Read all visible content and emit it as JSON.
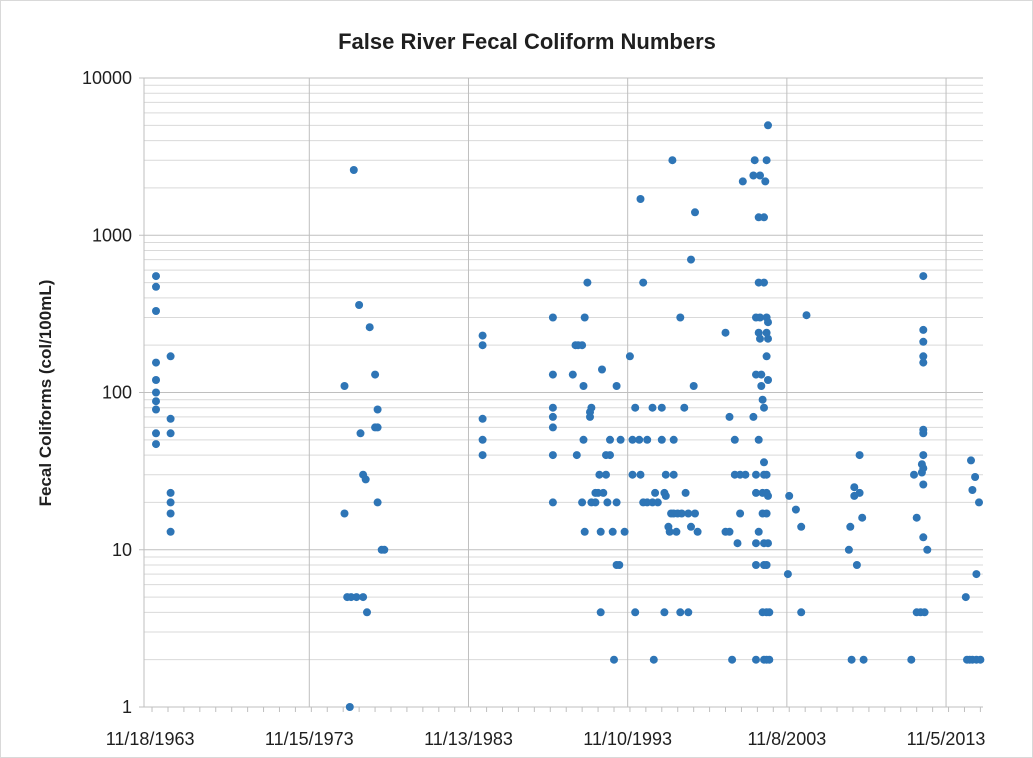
{
  "chart_data": {
    "type": "scatter",
    "title": "False River Fecal Coliform Numbers",
    "xlabel": "",
    "ylabel": "Fecal Coliforms (col/100mL)",
    "y_scale": "log",
    "ylim": [
      1,
      10000
    ],
    "xlim": [
      "1963-07-01",
      "2016-03-01"
    ],
    "y_ticks": [
      "1",
      "10",
      "100",
      "1000",
      "10000"
    ],
    "x_ticks": [
      {
        "date": "1963-11-18",
        "label": "11/18/1963"
      },
      {
        "date": "1973-11-15",
        "label": "11/15/1973"
      },
      {
        "date": "1983-11-13",
        "label": "11/13/1983"
      },
      {
        "date": "1993-11-10",
        "label": "11/10/1993"
      },
      {
        "date": "2003-11-08",
        "label": "11/8/2003"
      },
      {
        "date": "2013-11-05",
        "label": "11/5/2013"
      }
    ],
    "grid": "on",
    "legend": "none",
    "marker_color": "#2e75b6",
    "series": [
      {
        "points": [
          [
            "1964-04-01",
            550
          ],
          [
            "1964-04-01",
            470
          ],
          [
            "1964-04-01",
            330
          ],
          [
            "1964-04-01",
            155
          ],
          [
            "1964-04-01",
            120
          ],
          [
            "1964-04-01",
            100
          ],
          [
            "1964-04-01",
            88
          ],
          [
            "1964-04-01",
            78
          ],
          [
            "1964-04-01",
            55
          ],
          [
            "1964-04-01",
            47
          ],
          [
            "1965-03-01",
            170
          ],
          [
            "1965-03-01",
            68
          ],
          [
            "1965-03-01",
            55
          ],
          [
            "1965-03-01",
            23
          ],
          [
            "1965-03-01",
            20
          ],
          [
            "1965-03-01",
            17
          ],
          [
            "1965-03-01",
            13
          ],
          [
            "1976-02-01",
            110
          ],
          [
            "1976-02-01",
            17
          ],
          [
            "1976-04-01",
            5
          ],
          [
            "1976-06-01",
            1
          ],
          [
            "1976-07-01",
            5
          ],
          [
            "1976-09-01",
            2600
          ],
          [
            "1976-11-01",
            5
          ],
          [
            "1977-01-01",
            360
          ],
          [
            "1977-02-01",
            55
          ],
          [
            "1977-04-01",
            30
          ],
          [
            "1977-04-01",
            5
          ],
          [
            "1977-06-01",
            28
          ],
          [
            "1977-07-01",
            4
          ],
          [
            "1977-09-01",
            260
          ],
          [
            "1978-01-01",
            130
          ],
          [
            "1978-01-01",
            60
          ],
          [
            "1978-03-01",
            78
          ],
          [
            "1978-03-01",
            60
          ],
          [
            "1978-03-01",
            20
          ],
          [
            "1978-06-01",
            10
          ],
          [
            "1978-08-01",
            10
          ],
          [
            "1984-10-01",
            230
          ],
          [
            "1984-10-01",
            200
          ],
          [
            "1984-10-01",
            68
          ],
          [
            "1984-10-01",
            50
          ],
          [
            "1984-10-01",
            40
          ],
          [
            "1989-03-01",
            300
          ],
          [
            "1989-03-01",
            130
          ],
          [
            "1989-03-01",
            80
          ],
          [
            "1989-03-01",
            70
          ],
          [
            "1989-03-01",
            60
          ],
          [
            "1989-03-01",
            40
          ],
          [
            "1989-03-01",
            20
          ],
          [
            "1990-06-01",
            130
          ],
          [
            "1990-08-01",
            200
          ],
          [
            "1990-09-01",
            40
          ],
          [
            "1990-10-01",
            200
          ],
          [
            "1991-01-01",
            200
          ],
          [
            "1991-01-01",
            20
          ],
          [
            "1991-02-01",
            110
          ],
          [
            "1991-02-01",
            50
          ],
          [
            "1991-03-01",
            300
          ],
          [
            "1991-03-01",
            13
          ],
          [
            "1991-05-01",
            500
          ],
          [
            "1991-07-01",
            75
          ],
          [
            "1991-07-01",
            70
          ],
          [
            "1991-08-01",
            80
          ],
          [
            "1991-08-01",
            20
          ],
          [
            "1991-11-01",
            23
          ],
          [
            "1991-11-01",
            20
          ],
          [
            "1992-01-01",
            23
          ],
          [
            "1992-02-01",
            30
          ],
          [
            "1992-03-01",
            4
          ],
          [
            "1992-03-01",
            13
          ],
          [
            "1992-04-01",
            140
          ],
          [
            "1992-05-01",
            23
          ],
          [
            "1992-07-01",
            40
          ],
          [
            "1992-07-01",
            30
          ],
          [
            "1992-08-01",
            20
          ],
          [
            "1992-10-01",
            50
          ],
          [
            "1992-10-01",
            40
          ],
          [
            "1992-12-01",
            13
          ],
          [
            "1993-01-01",
            2
          ],
          [
            "1993-03-01",
            110
          ],
          [
            "1993-03-01",
            20
          ],
          [
            "1993-03-01",
            8
          ],
          [
            "1993-05-01",
            8
          ],
          [
            "1993-06-01",
            50
          ],
          [
            "1993-09-01",
            13
          ],
          [
            "1994-01-01",
            170
          ],
          [
            "1994-03-01",
            30
          ],
          [
            "1994-03-01",
            50
          ],
          [
            "1994-05-01",
            4
          ],
          [
            "1994-05-01",
            80
          ],
          [
            "1994-08-01",
            50
          ],
          [
            "1994-09-01",
            1700
          ],
          [
            "1994-09-01",
            30
          ],
          [
            "1994-11-01",
            500
          ],
          [
            "1994-11-01",
            20
          ],
          [
            "1995-02-01",
            50
          ],
          [
            "1995-02-01",
            20
          ],
          [
            "1995-06-01",
            80
          ],
          [
            "1995-06-01",
            20
          ],
          [
            "1995-07-01",
            2
          ],
          [
            "1995-08-01",
            23
          ],
          [
            "1995-10-01",
            20
          ],
          [
            "1996-01-01",
            80
          ],
          [
            "1996-01-01",
            50
          ],
          [
            "1996-03-01",
            23
          ],
          [
            "1996-03-01",
            4
          ],
          [
            "1996-04-01",
            30
          ],
          [
            "1996-04-01",
            22
          ],
          [
            "1996-06-01",
            14
          ],
          [
            "1996-07-01",
            13
          ],
          [
            "1996-08-01",
            17
          ],
          [
            "1996-09-01",
            3000
          ],
          [
            "1996-10-01",
            30
          ],
          [
            "1996-10-01",
            50
          ],
          [
            "1996-10-01",
            17
          ],
          [
            "1996-12-01",
            13
          ],
          [
            "1997-01-01",
            17
          ],
          [
            "1997-03-01",
            300
          ],
          [
            "1997-03-01",
            4
          ],
          [
            "1997-04-01",
            17
          ],
          [
            "1997-06-01",
            80
          ],
          [
            "1997-07-01",
            23
          ],
          [
            "1997-09-01",
            17
          ],
          [
            "1997-09-01",
            4
          ],
          [
            "1997-11-01",
            700
          ],
          [
            "1997-11-01",
            14
          ],
          [
            "1998-01-01",
            110
          ],
          [
            "1998-02-01",
            1400
          ],
          [
            "1998-02-01",
            17
          ],
          [
            "1998-04-01",
            13
          ],
          [
            "2000-01-01",
            240
          ],
          [
            "2000-01-01",
            13
          ],
          [
            "2000-04-01",
            70
          ],
          [
            "2000-04-01",
            13
          ],
          [
            "2000-06-01",
            2
          ],
          [
            "2000-08-01",
            50
          ],
          [
            "2000-08-01",
            30
          ],
          [
            "2000-10-01",
            11
          ],
          [
            "2000-12-01",
            30
          ],
          [
            "2000-12-01",
            17
          ],
          [
            "2001-02-01",
            2200
          ],
          [
            "2001-04-01",
            30
          ],
          [
            "2001-10-01",
            70
          ],
          [
            "2001-10-01",
            2400
          ],
          [
            "2001-11-01",
            3000
          ],
          [
            "2001-12-01",
            300
          ],
          [
            "2001-12-01",
            130
          ],
          [
            "2001-12-01",
            30
          ],
          [
            "2001-12-01",
            23
          ],
          [
            "2001-12-01",
            11
          ],
          [
            "2001-12-01",
            8
          ],
          [
            "2001-12-01",
            2
          ],
          [
            "2002-02-01",
            500
          ],
          [
            "2002-02-01",
            240
          ],
          [
            "2002-02-01",
            13
          ],
          [
            "2002-02-01",
            50
          ],
          [
            "2002-02-01",
            1300
          ],
          [
            "2002-03-01",
            2400
          ],
          [
            "2002-03-01",
            300
          ],
          [
            "2002-03-01",
            220
          ],
          [
            "2002-04-01",
            130
          ],
          [
            "2002-04-01",
            110
          ],
          [
            "2002-05-01",
            90
          ],
          [
            "2002-05-01",
            23
          ],
          [
            "2002-05-01",
            17
          ],
          [
            "2002-05-01",
            4
          ],
          [
            "2002-06-01",
            80
          ],
          [
            "2002-06-01",
            36
          ],
          [
            "2002-06-01",
            30
          ],
          [
            "2002-06-01",
            11
          ],
          [
            "2002-06-01",
            8
          ],
          [
            "2002-06-01",
            2
          ],
          [
            "2002-06-01",
            1300
          ],
          [
            "2002-06-01",
            500
          ],
          [
            "2002-07-01",
            2200
          ],
          [
            "2002-08-01",
            3000
          ],
          [
            "2002-08-01",
            300
          ],
          [
            "2002-08-01",
            240
          ],
          [
            "2002-08-01",
            170
          ],
          [
            "2002-08-01",
            30
          ],
          [
            "2002-08-01",
            23
          ],
          [
            "2002-08-01",
            17
          ],
          [
            "2002-08-01",
            8
          ],
          [
            "2002-08-01",
            4
          ],
          [
            "2002-08-01",
            2
          ],
          [
            "2002-09-01",
            5000
          ],
          [
            "2002-09-01",
            280
          ],
          [
            "2002-09-01",
            220
          ],
          [
            "2002-09-01",
            120
          ],
          [
            "2002-09-01",
            22
          ],
          [
            "2002-09-01",
            11
          ],
          [
            "2002-10-01",
            4
          ],
          [
            "2002-10-01",
            2
          ],
          [
            "2003-12-01",
            7
          ],
          [
            "2004-01-01",
            22
          ],
          [
            "2004-06-01",
            18
          ],
          [
            "2004-10-01",
            14
          ],
          [
            "2004-10-01",
            4
          ],
          [
            "2005-02-01",
            310
          ],
          [
            "2007-10-01",
            10
          ],
          [
            "2007-11-01",
            14
          ],
          [
            "2007-12-01",
            2
          ],
          [
            "2008-02-01",
            25
          ],
          [
            "2008-02-01",
            22
          ],
          [
            "2008-04-01",
            8
          ],
          [
            "2008-06-01",
            40
          ],
          [
            "2008-06-01",
            23
          ],
          [
            "2008-08-01",
            16
          ],
          [
            "2008-09-01",
            2
          ],
          [
            "2011-09-01",
            2
          ],
          [
            "2011-11-01",
            30
          ],
          [
            "2012-01-01",
            16
          ],
          [
            "2012-01-01",
            4
          ],
          [
            "2012-04-01",
            4
          ],
          [
            "2012-05-01",
            31
          ],
          [
            "2012-05-01",
            35
          ],
          [
            "2012-06-01",
            550
          ],
          [
            "2012-06-01",
            250
          ],
          [
            "2012-06-01",
            210
          ],
          [
            "2012-06-01",
            170
          ],
          [
            "2012-06-01",
            155
          ],
          [
            "2012-06-01",
            58
          ],
          [
            "2012-06-01",
            55
          ],
          [
            "2012-06-01",
            40
          ],
          [
            "2012-06-01",
            33
          ],
          [
            "2012-06-01",
            26
          ],
          [
            "2012-06-01",
            12
          ],
          [
            "2012-09-01",
            10
          ],
          [
            "2012-07-01",
            4
          ],
          [
            "2015-02-01",
            5
          ],
          [
            "2015-03-01",
            2
          ],
          [
            "2015-05-01",
            2
          ],
          [
            "2015-06-01",
            37
          ],
          [
            "2015-07-01",
            24
          ],
          [
            "2015-07-01",
            2
          ],
          [
            "2015-09-01",
            29
          ],
          [
            "2015-10-01",
            7
          ],
          [
            "2015-10-01",
            2
          ],
          [
            "2015-12-01",
            20
          ],
          [
            "2016-01-01",
            2
          ]
        ]
      }
    ]
  }
}
